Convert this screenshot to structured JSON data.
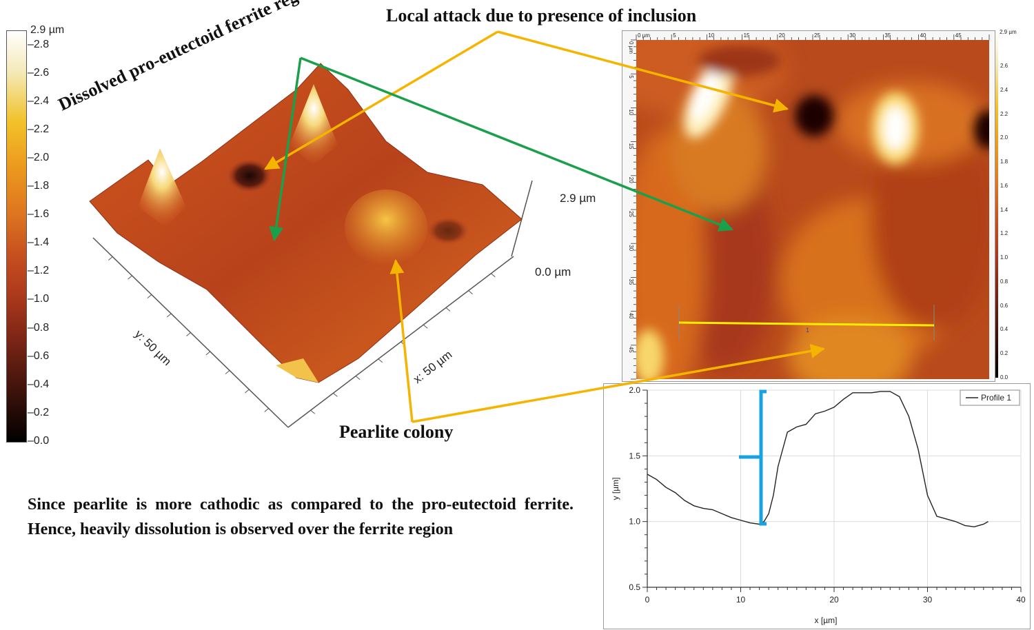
{
  "annotations": {
    "local_attack": "Local attack due to presence of inclusion",
    "ferrite_region": "Dissolved pro-eutectoid ferrite region",
    "pearlite_colony": "Pearlite colony"
  },
  "note": "Since pearlite is more cathodic as compared to the pro-eutectoid ferrite. Hence, heavily dissolution is observed over the ferrite region",
  "colorbar_main": {
    "max_label": "2.9 µm",
    "ticks": [
      "2.8",
      "2.6",
      "2.4",
      "2.2",
      "2.0",
      "1.8",
      "1.6",
      "1.4",
      "1.2",
      "1.0",
      "0.8",
      "0.6",
      "0.4",
      "0.2",
      "0.0"
    ]
  },
  "surface3d": {
    "z_max_label": "2.9 µm",
    "z_min_label": "0.0 µm",
    "y_axis_label": "y: 50 µm",
    "x_axis_label": "x: 50 µm"
  },
  "map2d": {
    "colorbar_max_label": "2.9 µm",
    "colorbar_ticks": [
      "2.6",
      "2.4",
      "2.2",
      "2.0",
      "1.8",
      "1.6",
      "1.4",
      "1.2",
      "1.0",
      "0.8",
      "0.6",
      "0.4",
      "0.2",
      "0.0"
    ],
    "top_ruler_labels": [
      "0 µm",
      "5",
      "10",
      "15",
      "20",
      "25",
      "30",
      "35",
      "40",
      "45"
    ],
    "left_ruler_labels": [
      "0 µm",
      "5",
      "10",
      "15",
      "20",
      "25",
      "30",
      "35",
      "40",
      "45"
    ],
    "profile_marker": "1"
  },
  "chart_data": {
    "type": "line",
    "title": "",
    "xlabel": "x [µm]",
    "ylabel": "y [µm]",
    "xlim": [
      0,
      40
    ],
    "ylim": [
      0.5,
      2.0
    ],
    "xticks": [
      "0",
      "10",
      "20",
      "30",
      "40"
    ],
    "yticks": [
      "0.5",
      "1.0",
      "1.5",
      "2.0"
    ],
    "legend": "top-right",
    "series": [
      {
        "name": "Profile 1",
        "x": [
          0,
          1,
          2,
          3,
          4,
          5,
          6,
          7,
          8,
          9,
          10,
          11,
          12,
          12.5,
          13,
          13.5,
          14,
          15,
          16,
          17,
          18,
          19,
          20,
          21,
          22,
          23,
          24,
          25,
          26,
          27,
          28,
          29,
          30,
          31,
          32,
          33,
          34,
          35,
          36,
          36.5
        ],
        "y": [
          1.36,
          1.32,
          1.26,
          1.22,
          1.16,
          1.12,
          1.1,
          1.09,
          1.06,
          1.03,
          1.01,
          0.99,
          0.98,
          1.0,
          1.06,
          1.2,
          1.42,
          1.68,
          1.72,
          1.74,
          1.82,
          1.84,
          1.87,
          1.93,
          1.98,
          1.98,
          1.98,
          1.99,
          1.99,
          1.95,
          1.8,
          1.55,
          1.2,
          1.04,
          1.02,
          1.0,
          0.97,
          0.96,
          0.98,
          1.0
        ]
      }
    ]
  },
  "colors": {
    "green_arrow": "#1aa04a",
    "yellow_arrow": "#f5b400",
    "bracket": "#17a2e0",
    "profile_line": "#ffee00"
  }
}
